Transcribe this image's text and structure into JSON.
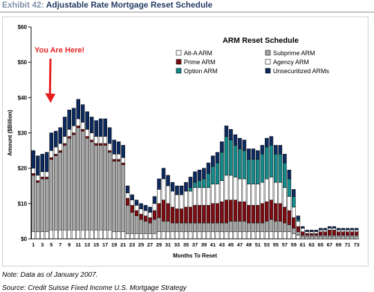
{
  "header": {
    "exhibit_label": "Exhibit 42:",
    "exhibit_name": "Adjustable Rate Mortgage Reset Schedule"
  },
  "footer": {
    "note": "Note: Data as of January 2007.",
    "source": "Source: Credit Suisse Fixed Income U.S. Mortgage Strategy"
  },
  "chart_data": {
    "type": "bar",
    "stacked": true,
    "title": "ARM Reset Schedule",
    "xlabel": "Months To Reset",
    "ylabel": "Amount ($Billion)",
    "ylim": [
      0,
      60
    ],
    "yticks": [
      "$0",
      "$10",
      "$20",
      "$30",
      "$40",
      "$50",
      "$60"
    ],
    "grid": false,
    "legend_position": "top-right",
    "annotation": {
      "text": "You Are Here!",
      "x": 5,
      "color": "#e41f1f"
    },
    "categories": [
      1,
      2,
      3,
      4,
      5,
      6,
      7,
      8,
      9,
      10,
      11,
      12,
      13,
      14,
      15,
      16,
      17,
      18,
      19,
      20,
      21,
      22,
      23,
      24,
      25,
      26,
      27,
      28,
      29,
      30,
      31,
      32,
      33,
      34,
      35,
      36,
      37,
      38,
      39,
      40,
      41,
      42,
      43,
      44,
      45,
      46,
      47,
      48,
      49,
      50,
      51,
      52,
      53,
      54,
      55,
      56,
      57,
      58,
      59,
      60,
      61,
      62,
      63,
      64,
      65,
      66,
      67,
      68,
      69,
      70,
      71,
      72,
      73
    ],
    "xtick_labels": [
      1,
      3,
      5,
      7,
      9,
      11,
      13,
      15,
      17,
      19,
      21,
      23,
      25,
      27,
      29,
      31,
      33,
      35,
      37,
      39,
      41,
      43,
      45,
      47,
      49,
      51,
      53,
      55,
      57,
      59,
      61,
      63,
      65,
      67,
      69,
      71,
      73
    ],
    "series": [
      {
        "name": "Alt-A ARM",
        "color": "#ffffff",
        "values": [
          2,
          2,
          2,
          2,
          2.5,
          2.5,
          2.5,
          2.5,
          2.5,
          2.5,
          2.5,
          2.5,
          2.5,
          2.5,
          2.5,
          2.5,
          2.5,
          2.5,
          2,
          2,
          2,
          1.5,
          1.5,
          1.5,
          1.5,
          1.5,
          1.5,
          1.5,
          2,
          2,
          2,
          2,
          2,
          2,
          2,
          2,
          2,
          2,
          2,
          2,
          2,
          2,
          2,
          2,
          2,
          2,
          2,
          2,
          2,
          2,
          2,
          2,
          2,
          2,
          2,
          2,
          2,
          2,
          1.5,
          1,
          0.5,
          0.5,
          0.5,
          0.5,
          0.5,
          0.5,
          0.5,
          0.5,
          0.5,
          0.5,
          0.5,
          0.5,
          0.5
        ]
      },
      {
        "name": "Subprime ARM",
        "color": "#a6a6a6",
        "values": [
          16,
          14,
          15,
          15,
          20,
          21,
          22,
          24,
          26,
          27,
          29,
          28,
          26,
          25,
          24,
          24,
          24,
          22,
          20,
          20,
          19,
          8,
          6,
          5,
          4,
          3.5,
          3,
          4,
          4,
          3,
          3,
          2.5,
          2.5,
          2.5,
          2.5,
          2.5,
          2.5,
          2.5,
          2.5,
          2.5,
          2.5,
          2.5,
          2.5,
          2.5,
          3,
          3,
          3,
          3,
          2.5,
          2.5,
          2.5,
          2.5,
          3,
          3.5,
          3,
          3,
          2.5,
          2,
          1.5,
          1,
          0.5,
          0.5,
          0.5,
          0.5,
          0.5,
          0.5,
          0.5,
          0.5,
          0.5,
          0.5,
          0.5,
          0.5,
          0.5
        ]
      },
      {
        "name": "Prime ARM",
        "color": "#7b0c12",
        "values": [
          0.5,
          0.5,
          0.5,
          0.5,
          0.5,
          0.5,
          0.5,
          0.5,
          0.5,
          0.5,
          0.5,
          0.5,
          0.5,
          0.5,
          0.5,
          0.5,
          0.5,
          0.5,
          0.5,
          0.5,
          0.5,
          2,
          2,
          1.5,
          1.5,
          1.5,
          1.5,
          2.5,
          4,
          6,
          5,
          4.5,
          4,
          4,
          4.5,
          4.5,
          5,
          5,
          5,
          5,
          5.5,
          5.5,
          6,
          6.5,
          6,
          6,
          5.5,
          5.5,
          5,
          5,
          5,
          5.5,
          5.5,
          5.5,
          5,
          5,
          4.5,
          4,
          3,
          1.5,
          1,
          0.5,
          0.5,
          0.5,
          1,
          1,
          1.5,
          1.5,
          1,
          1,
          1,
          1,
          1
        ]
      },
      {
        "name": "Agency ARM",
        "color": "#ffffff",
        "values": [
          1.5,
          1.5,
          1.5,
          1.5,
          2,
          2,
          2,
          2,
          2,
          2,
          2,
          2,
          2,
          2,
          2,
          2,
          2,
          2,
          1.5,
          1.5,
          1.5,
          1.5,
          1.5,
          1.5,
          1.5,
          1.5,
          1.5,
          2,
          4,
          6,
          5,
          4.5,
          4,
          4,
          4.5,
          4.5,
          5,
          5,
          5,
          5,
          5.5,
          5.5,
          6,
          7,
          7,
          6.5,
          6.5,
          6.5,
          6,
          6,
          6,
          6,
          6.5,
          6.5,
          6,
          6,
          5.5,
          4,
          3,
          1.5,
          1,
          0.5,
          0.5,
          0.5,
          0.5,
          0.5,
          0.5,
          0.5,
          0.5,
          0.5,
          0.5,
          0.5,
          0.5
        ]
      },
      {
        "name": "Option ARM",
        "color": "#158a8a",
        "values": [
          0,
          0,
          0,
          0,
          0,
          0,
          0,
          0,
          0,
          0,
          0,
          0,
          0,
          0,
          0,
          0,
          0,
          0,
          0,
          0,
          0,
          0,
          0,
          0,
          0,
          0,
          0,
          0,
          0,
          0,
          0,
          0,
          0,
          0,
          0,
          1,
          1.5,
          2,
          2.5,
          4,
          5,
          6,
          8,
          11,
          10,
          9,
          8.5,
          8,
          7,
          7,
          7,
          8,
          9,
          9,
          8,
          8,
          7,
          5,
          3,
          0.5,
          0,
          0,
          0,
          0,
          0,
          0,
          0,
          0,
          0,
          0,
          0,
          0,
          0
        ]
      },
      {
        "name": "Unsecuritized ARMs",
        "color": "#0d2a5e",
        "values": [
          5,
          5.5,
          5,
          5.5,
          5,
          4.5,
          4.5,
          5.5,
          5.5,
          5,
          5.5,
          5,
          5,
          4.5,
          4.5,
          5,
          5,
          4.5,
          4,
          3.5,
          3.5,
          2,
          1.5,
          1.5,
          1.5,
          1.5,
          1.5,
          2,
          3,
          3,
          3,
          2.5,
          2.5,
          2.5,
          2.5,
          3,
          3,
          3,
          3,
          3,
          3,
          3,
          3,
          3,
          3,
          3,
          3,
          3,
          3,
          3,
          2.5,
          2.5,
          2.5,
          2.5,
          2.5,
          2.5,
          2.5,
          2.5,
          2,
          1,
          0.5,
          0.5,
          0.5,
          0.5,
          0.5,
          0.5,
          0.5,
          0.5,
          0.5,
          0.5,
          0.5,
          0.5,
          0.5
        ]
      }
    ]
  }
}
